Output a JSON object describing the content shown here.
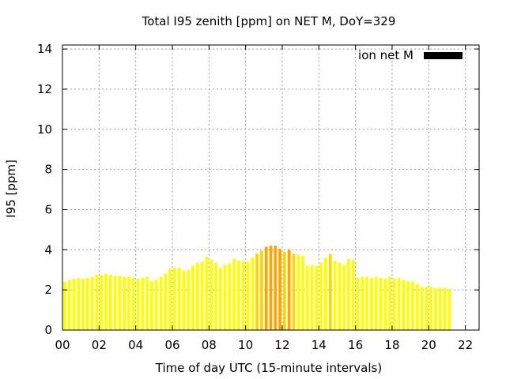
{
  "chart_data": {
    "type": "bar",
    "title": "Total I95 zenith [ppm] on NET M, DoY=329",
    "xlabel": "Time of day UTC (15-minute intervals)",
    "ylabel": "I95 [ppm]",
    "xlim": [
      0,
      22.75
    ],
    "ylim": [
      0,
      14.2
    ],
    "interval_hours": 0.25,
    "x_ticks": [
      0,
      2,
      4,
      6,
      8,
      10,
      12,
      14,
      16,
      18,
      20,
      22
    ],
    "x_tick_labels": [
      "00",
      "02",
      "04",
      "06",
      "08",
      "10",
      "12",
      "14",
      "16",
      "18",
      "20",
      "22"
    ],
    "y_ticks": [
      0,
      2,
      4,
      6,
      8,
      10,
      12,
      14
    ],
    "y_tick_labels": [
      "0",
      "2",
      "4",
      "6",
      "8",
      "10",
      "12",
      "14"
    ],
    "grid": true,
    "legend": {
      "label": "ion net M",
      "color": "#000000",
      "position": "top-right"
    },
    "colors": {
      "low": "#ffff00",
      "mid": "#ffd700",
      "high": "#ffa500"
    },
    "values": [
      2.4,
      2.5,
      2.55,
      2.6,
      2.55,
      2.6,
      2.65,
      2.75,
      2.75,
      2.8,
      2.75,
      2.7,
      2.7,
      2.65,
      2.65,
      2.6,
      2.55,
      2.6,
      2.65,
      2.45,
      2.5,
      2.65,
      2.8,
      3.05,
      3.1,
      3.1,
      2.95,
      3.0,
      3.2,
      3.35,
      3.4,
      3.65,
      3.5,
      3.35,
      3.1,
      3.25,
      3.3,
      3.55,
      3.45,
      3.45,
      3.4,
      3.6,
      3.8,
      3.95,
      4.15,
      4.2,
      4.2,
      4.05,
      3.9,
      4.0,
      3.8,
      3.75,
      3.7,
      3.2,
      3.25,
      3.2,
      3.35,
      3.6,
      3.8,
      3.45,
      3.35,
      3.25,
      3.55,
      3.5,
      2.6,
      2.65,
      2.65,
      2.6,
      2.65,
      2.6,
      2.55,
      2.65,
      2.55,
      2.6,
      2.5,
      2.45,
      2.4,
      2.3,
      2.15,
      2.15,
      2.15,
      2.1,
      2.1,
      2.1,
      2.05
    ]
  }
}
